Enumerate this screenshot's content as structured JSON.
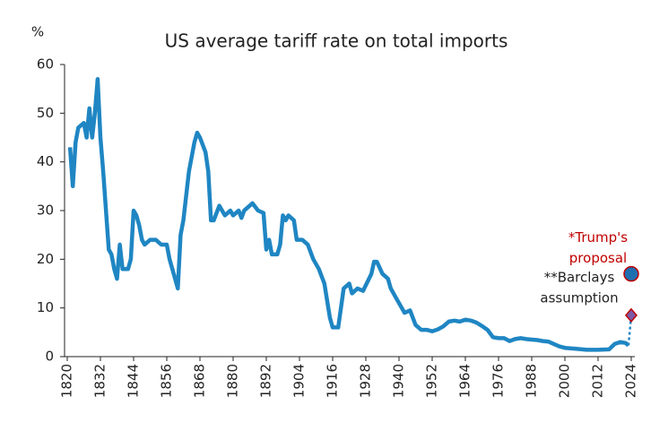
{
  "chart_data": {
    "type": "line",
    "title": "US average tariff rate on total imports",
    "y_unit": "%",
    "x": [
      1821,
      1822,
      1823,
      1824,
      1826,
      1827,
      1828,
      1829,
      1830,
      1831,
      1832,
      1833,
      1834,
      1835,
      1836,
      1837,
      1838,
      1839,
      1840,
      1842,
      1843,
      1844,
      1845,
      1846,
      1847,
      1848,
      1850,
      1852,
      1854,
      1856,
      1857,
      1859,
      1860,
      1861,
      1862,
      1864,
      1866,
      1867,
      1868,
      1870,
      1871,
      1872,
      1873,
      1875,
      1877,
      1879,
      1880,
      1882,
      1883,
      1884,
      1886,
      1887,
      1889,
      1891,
      1892,
      1893,
      1894,
      1896,
      1897,
      1898,
      1899,
      1900,
      1902,
      1903,
      1905,
      1907,
      1909,
      1911,
      1913,
      1915,
      1916,
      1918,
      1920,
      1922,
      1923,
      1925,
      1927,
      1930,
      1931,
      1932,
      1934,
      1936,
      1937,
      1939,
      1941,
      1942,
      1944,
      1946,
      1948,
      1950,
      1952,
      1954,
      1956,
      1958,
      1960,
      1962,
      1964,
      1966,
      1968,
      1970,
      1972,
      1974,
      1976,
      1978,
      1980,
      1982,
      1984,
      1986,
      1988,
      1990,
      1992,
      1994,
      1996,
      1998,
      2000,
      2004,
      2008,
      2012,
      2016,
      2018,
      2020,
      2022,
      2023
    ],
    "series": [
      {
        "color": "#1f86c3",
        "values": [
          43,
          35,
          44,
          47,
          48,
          45,
          51,
          45,
          50,
          57,
          45,
          38,
          30,
          22,
          21,
          18,
          16,
          23,
          18,
          18,
          20,
          30,
          29,
          27,
          24,
          23,
          24,
          24,
          23,
          23,
          20,
          16,
          14,
          25,
          28,
          38,
          44,
          46,
          45,
          42,
          38,
          28,
          28,
          31,
          29,
          30,
          29,
          30,
          28.5,
          30,
          31,
          31.5,
          30,
          29.5,
          22,
          24,
          21,
          21,
          23,
          29,
          28,
          29,
          28,
          24,
          24,
          23,
          20,
          18,
          15,
          8,
          6,
          6,
          14,
          15,
          13,
          14,
          13.5,
          17,
          19.5,
          19.5,
          17,
          16,
          14,
          12,
          10,
          9,
          9.5,
          6.5,
          5.5,
          5.5,
          5.2,
          5.6,
          6.2,
          7.2,
          7.4,
          7.2,
          7.6,
          7.4,
          7,
          6.3,
          5.5,
          4,
          3.8,
          3.8,
          3.2,
          3.6,
          3.8,
          3.6,
          3.5,
          3.4,
          3.2,
          3.1,
          2.6,
          2.1,
          1.8,
          1.6,
          1.4,
          1.4,
          1.5,
          2.6,
          3,
          2.8,
          2.3
        ]
      }
    ],
    "annotations": [
      {
        "label": [
          "*Trump's",
          "proposal"
        ],
        "x": 2024,
        "y": 17,
        "marker": "circle",
        "color": "#1f6fb0",
        "text_color": "#c00000"
      },
      {
        "label": [
          "**Barclays",
          "assumption"
        ],
        "x": 2024,
        "y": 8.5,
        "marker": "diamond",
        "color": "#7b5aa6",
        "text_color": "#222222"
      }
    ],
    "xlim": [
      1820,
      2024
    ],
    "xticks": [
      1820,
      1832,
      1844,
      1856,
      1868,
      1880,
      1892,
      1904,
      1916,
      1928,
      1940,
      1952,
      1964,
      1976,
      1988,
      2000,
      2012,
      2024
    ],
    "ylim": [
      0,
      60
    ],
    "yticks": [
      0,
      10,
      20,
      30,
      40,
      50,
      60
    ]
  }
}
